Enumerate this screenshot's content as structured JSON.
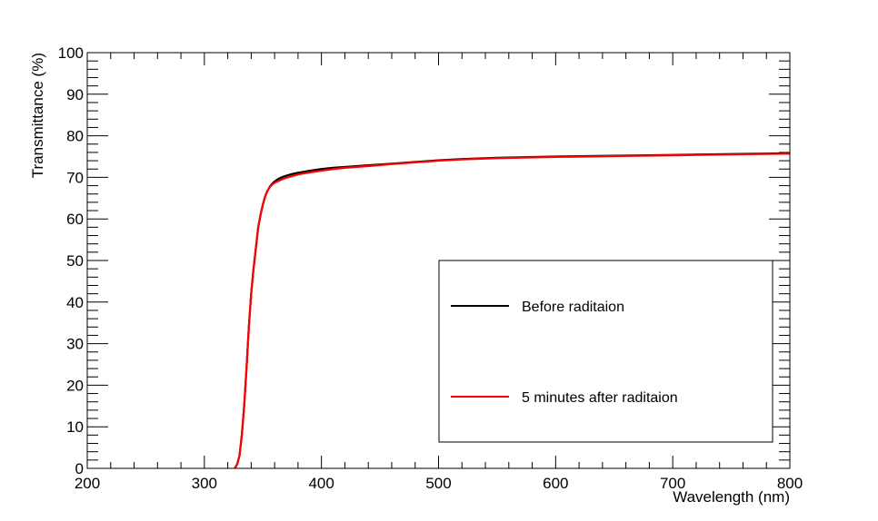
{
  "chart_data": {
    "type": "line",
    "title": "",
    "xlabel": "Wavelength (nm)",
    "ylabel": "Transmittance (%)",
    "xlim": [
      200,
      800
    ],
    "ylim": [
      0,
      100
    ],
    "x_ticks": [
      200,
      300,
      400,
      500,
      600,
      700,
      800
    ],
    "y_ticks": [
      0,
      10,
      20,
      30,
      40,
      50,
      60,
      70,
      80,
      90,
      100
    ],
    "x_tick_labels": [
      "200",
      "300",
      "400",
      "500",
      "600",
      "700",
      "800"
    ],
    "y_tick_labels": [
      "0",
      "10",
      "20",
      "30",
      "40",
      "50",
      "60",
      "70",
      "80",
      "90",
      "100"
    ],
    "grid": false,
    "legend_position": "bottom-right",
    "series": [
      {
        "name": "Before raditaion",
        "color": "#000000",
        "x": [
          326,
          328,
          330,
          332,
          334,
          336,
          338,
          340,
          342,
          344,
          346,
          348,
          350,
          352,
          354,
          356,
          358,
          360,
          363,
          366,
          370,
          375,
          380,
          390,
          400,
          410,
          420,
          440,
          460,
          480,
          500,
          520,
          550,
          600,
          650,
          700,
          750,
          800
        ],
        "y": [
          0,
          1,
          3,
          8,
          15,
          24,
          34,
          42,
          48,
          53,
          58,
          61,
          63.5,
          65.5,
          66.8,
          67.8,
          68.5,
          69,
          69.6,
          70,
          70.4,
          70.8,
          71.1,
          71.6,
          72,
          72.3,
          72.5,
          72.9,
          73.3,
          73.7,
          74.1,
          74.4,
          74.7,
          75,
          75.2,
          75.4,
          75.6,
          75.8
        ]
      },
      {
        "name": "5 minutes after raditaion",
        "color": "#ff0000",
        "x": [
          326,
          328,
          330,
          332,
          334,
          336,
          338,
          340,
          342,
          344,
          346,
          348,
          350,
          352,
          354,
          356,
          358,
          360,
          363,
          366,
          370,
          375,
          380,
          390,
          400,
          410,
          420,
          440,
          460,
          480,
          500,
          520,
          550,
          600,
          650,
          700,
          750,
          800
        ],
        "y": [
          0,
          1,
          3,
          8,
          15,
          24,
          34,
          42,
          48,
          53,
          58,
          61,
          63.5,
          65.5,
          66.8,
          67.7,
          68.3,
          68.7,
          69.1,
          69.5,
          69.9,
          70.3,
          70.7,
          71.2,
          71.6,
          72,
          72.3,
          72.7,
          73.2,
          73.6,
          74,
          74.3,
          74.6,
          74.9,
          75.1,
          75.3,
          75.5,
          75.7
        ]
      }
    ]
  }
}
